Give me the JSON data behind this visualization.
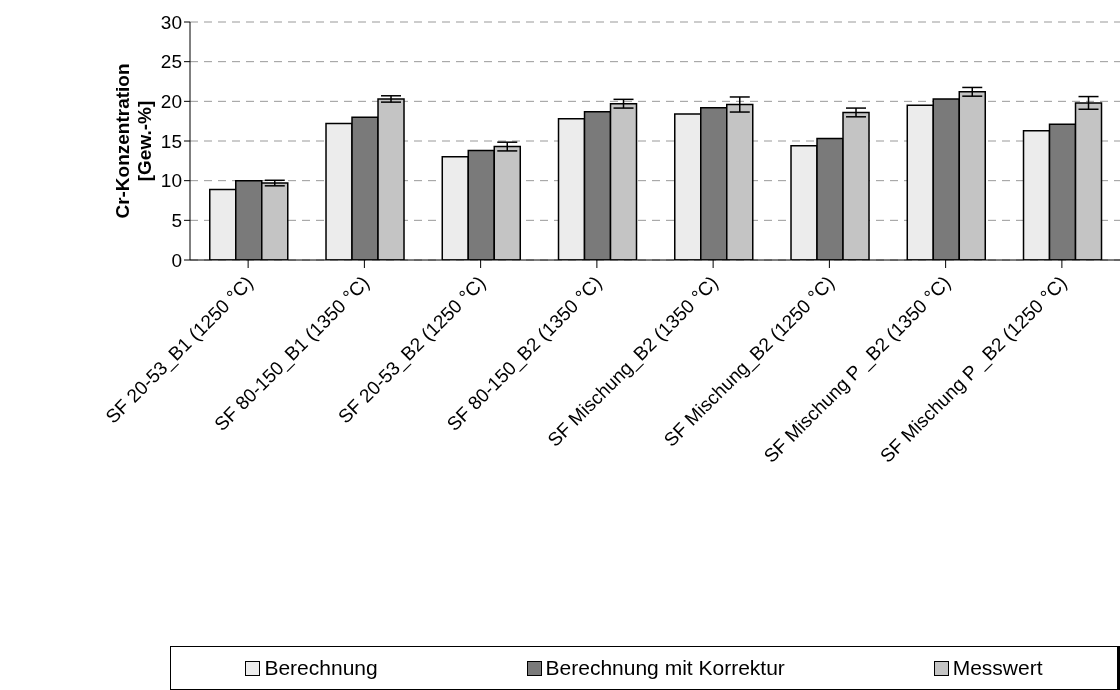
{
  "chart_data": {
    "type": "bar",
    "ylabel": "Cr-Konzentration [Gew.-%]",
    "categories": [
      "SF 20-53_B1 (1250 °C)",
      "SF 80-150_B1 (1350 °C)",
      "SF 20-53_B2 (1250 °C)",
      "SF 80-150_B2 (1350 °C)",
      "SF Mischung_B2 (1350 °C)",
      "SF Mischung_B2 (1250 °C)",
      "SF Mischung P _B2 (1350 °C)",
      "SF Mischung P _B2 (1250 °C)"
    ],
    "series": [
      {
        "name": "Berechnung",
        "color": "#ececec",
        "values": [
          8.9,
          17.2,
          13.0,
          17.8,
          18.4,
          14.4,
          19.5,
          16.3
        ]
      },
      {
        "name": "Berechnung mit Korrektur",
        "color": "#7a7a7a",
        "values": [
          10.0,
          18.0,
          13.8,
          18.7,
          19.2,
          15.3,
          20.3,
          17.1
        ]
      },
      {
        "name": "Messwert",
        "color": "#c4c4c4",
        "values": [
          9.7,
          20.3,
          14.3,
          19.7,
          19.6,
          18.6,
          21.2,
          19.8
        ],
        "errors": [
          0.35,
          0.4,
          0.55,
          0.55,
          0.95,
          0.55,
          0.55,
          0.8
        ]
      }
    ],
    "ylim": [
      0,
      30
    ],
    "yticks": [
      0,
      5,
      10,
      15,
      20,
      25,
      30
    ],
    "grid": "y",
    "legend": "bottom"
  }
}
